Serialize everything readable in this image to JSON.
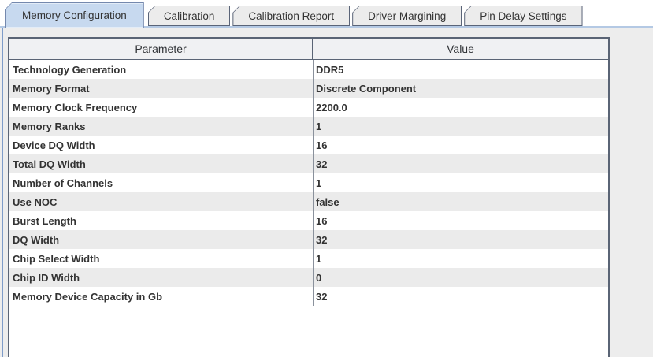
{
  "tabs": [
    {
      "label": "Memory Configuration",
      "selected": true
    },
    {
      "label": "Calibration",
      "selected": false
    },
    {
      "label": "Calibration Report",
      "selected": false
    },
    {
      "label": "Driver Margining",
      "selected": false
    },
    {
      "label": "Pin Delay Settings",
      "selected": false
    }
  ],
  "table": {
    "columns": [
      "Parameter",
      "Value"
    ],
    "rows": [
      [
        "Technology Generation",
        "DDR5"
      ],
      [
        "Memory Format",
        "Discrete Component"
      ],
      [
        "Memory Clock Frequency",
        "2200.0"
      ],
      [
        "Memory Ranks",
        "1"
      ],
      [
        "Device DQ Width",
        "16"
      ],
      [
        "Total DQ Width",
        "32"
      ],
      [
        "Number of Channels",
        "1"
      ],
      [
        "Use NOC",
        "false"
      ],
      [
        "Burst Length",
        "16"
      ],
      [
        "DQ Width",
        "32"
      ],
      [
        "Chip Select Width",
        "1"
      ],
      [
        "Chip ID Width",
        "0"
      ],
      [
        "Memory Device Capacity in Gb",
        "32"
      ]
    ]
  },
  "colors": {
    "selected_tab_bg": "#c7d9ef",
    "selected_tab_border": "#7488ad",
    "inactive_tab_bg": "#ececec",
    "tab_border": "#5a6478",
    "tabpane_accent_line": "#b4c9e4",
    "tabpane_left_stripe": "#7e9cc9",
    "panel_bg": "#ededed",
    "scrollpane_border": "#5a6475",
    "header_bg": "#f0f1f3",
    "row_alt_bg": "#ebebeb",
    "cell_text": "#333333"
  }
}
